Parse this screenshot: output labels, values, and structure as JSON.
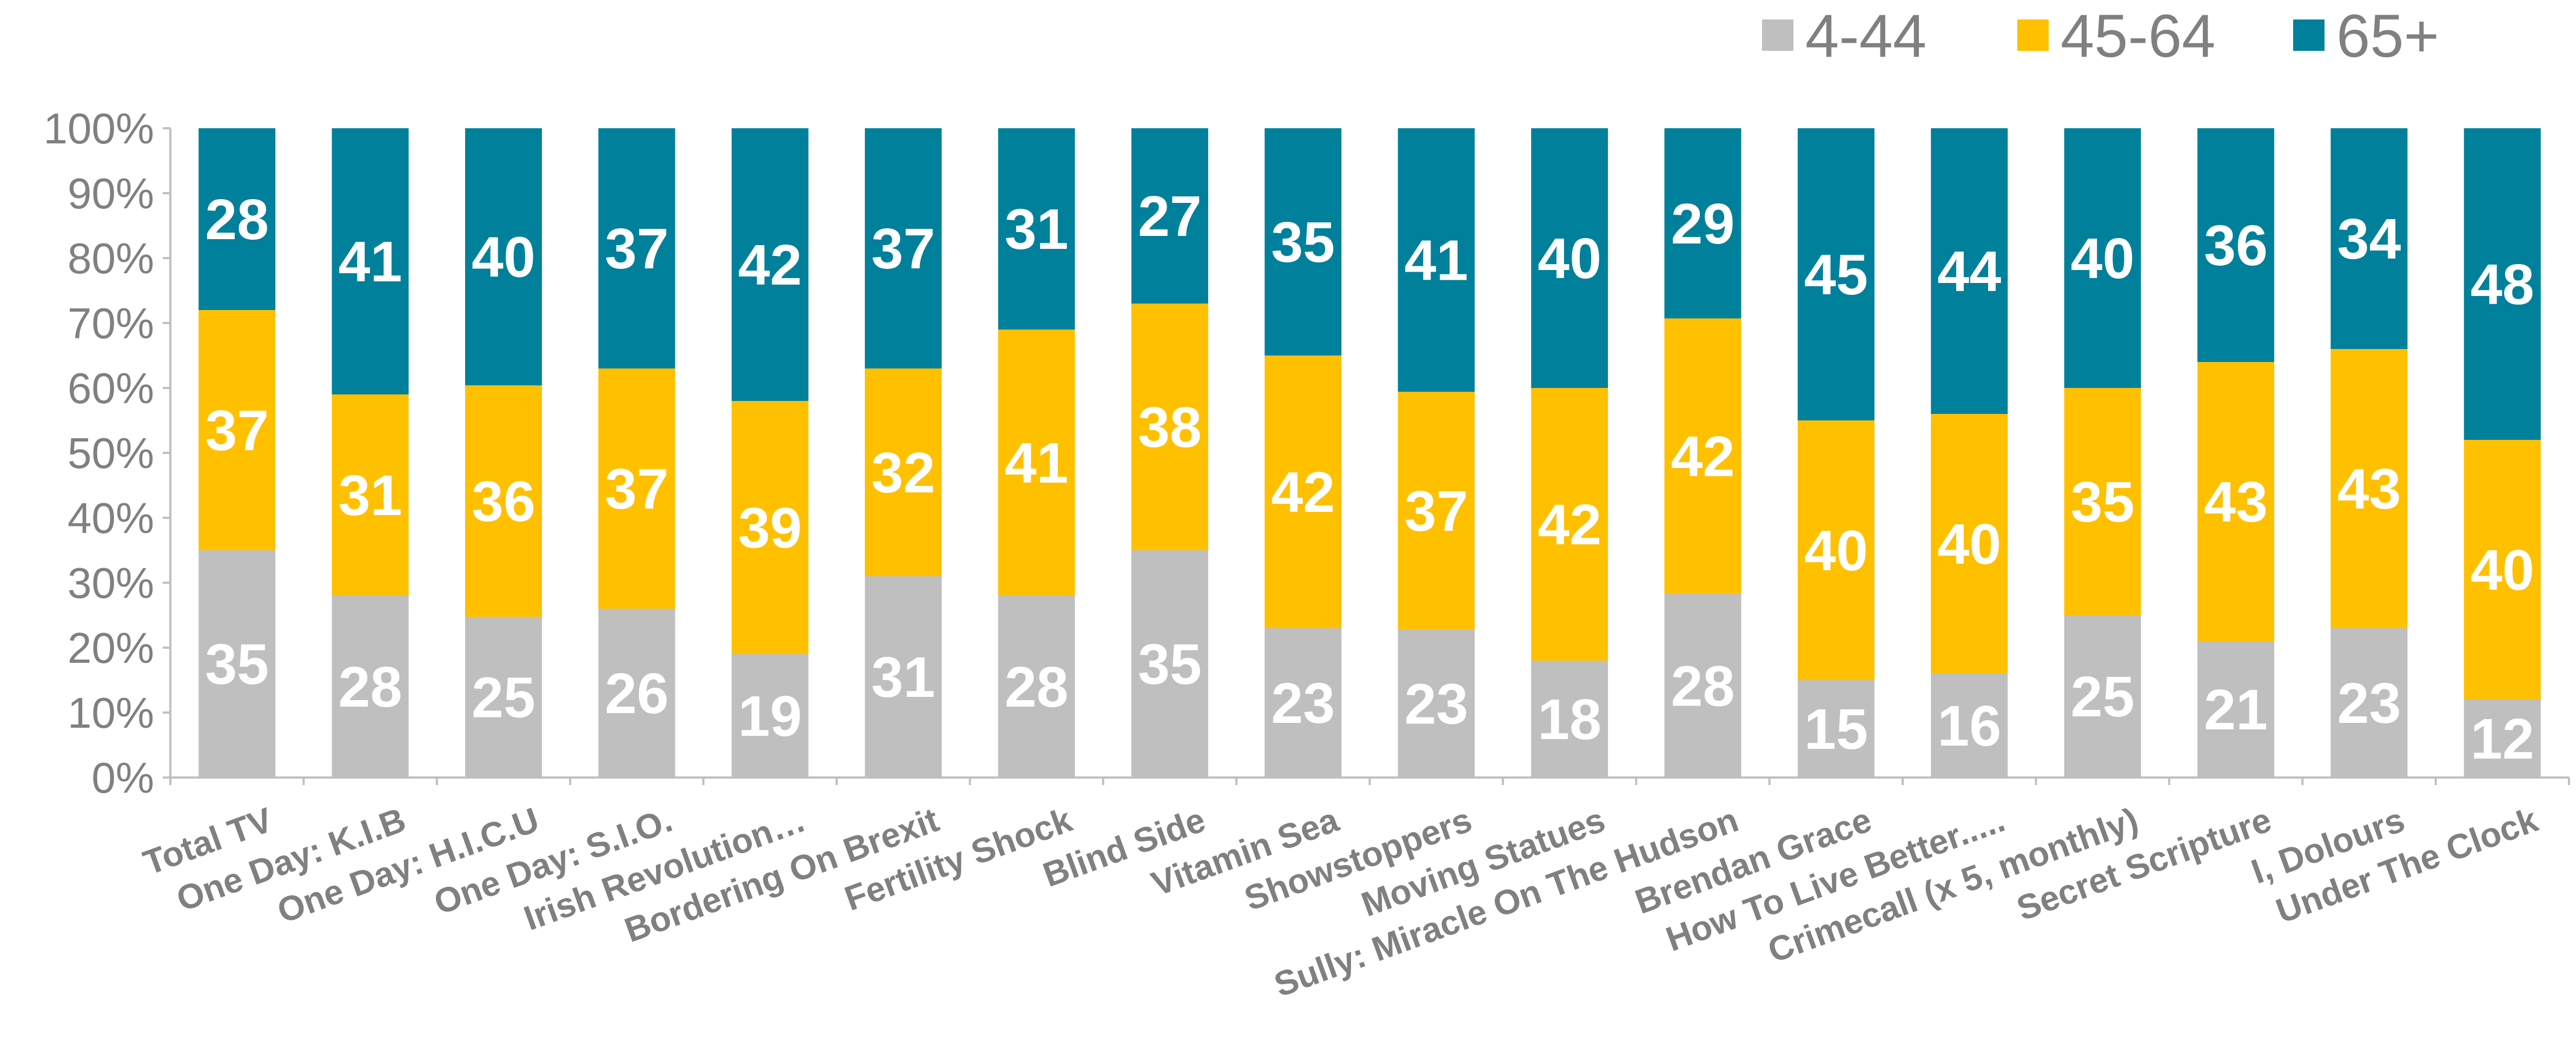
{
  "chart_data": {
    "type": "bar",
    "stacked": true,
    "percent": true,
    "categories": [
      "Total TV",
      "One Day: K.I.B",
      "One Day: H.I.C.U",
      "One Day: S.I.O.",
      "Irish Revolution…",
      "Bordering On Brexit",
      "Fertility Shock",
      "Blind Side",
      "Vitamin Sea",
      "Showstoppers",
      "Moving Statues",
      "Sully: Miracle On The Hudson",
      "Brendan Grace",
      "How To Live Better.....",
      "Crimecall (x 5, monthly)",
      "Secret Scripture",
      "I, Dolours",
      "Under The Clock"
    ],
    "series": [
      {
        "name": "4-44",
        "color": "#bfbfbf",
        "values": [
          35,
          28,
          25,
          26,
          19,
          31,
          28,
          35,
          23,
          23,
          18,
          28,
          15,
          16,
          25,
          21,
          23,
          12
        ]
      },
      {
        "name": "45-64",
        "color": "#ffc000",
        "values": [
          37,
          31,
          36,
          37,
          39,
          32,
          41,
          38,
          42,
          37,
          42,
          42,
          40,
          40,
          35,
          43,
          43,
          40
        ]
      },
      {
        "name": "65+",
        "color": "#00809b",
        "values": [
          28,
          41,
          40,
          37,
          42,
          37,
          31,
          27,
          35,
          41,
          40,
          29,
          45,
          44,
          40,
          36,
          34,
          48
        ]
      }
    ],
    "ylim": [
      0,
      100
    ],
    "yticks": [
      "0%",
      "10%",
      "20%",
      "30%",
      "40%",
      "50%",
      "60%",
      "70%",
      "80%",
      "90%",
      "100%"
    ],
    "legend_position": "top-right",
    "grid": false
  }
}
